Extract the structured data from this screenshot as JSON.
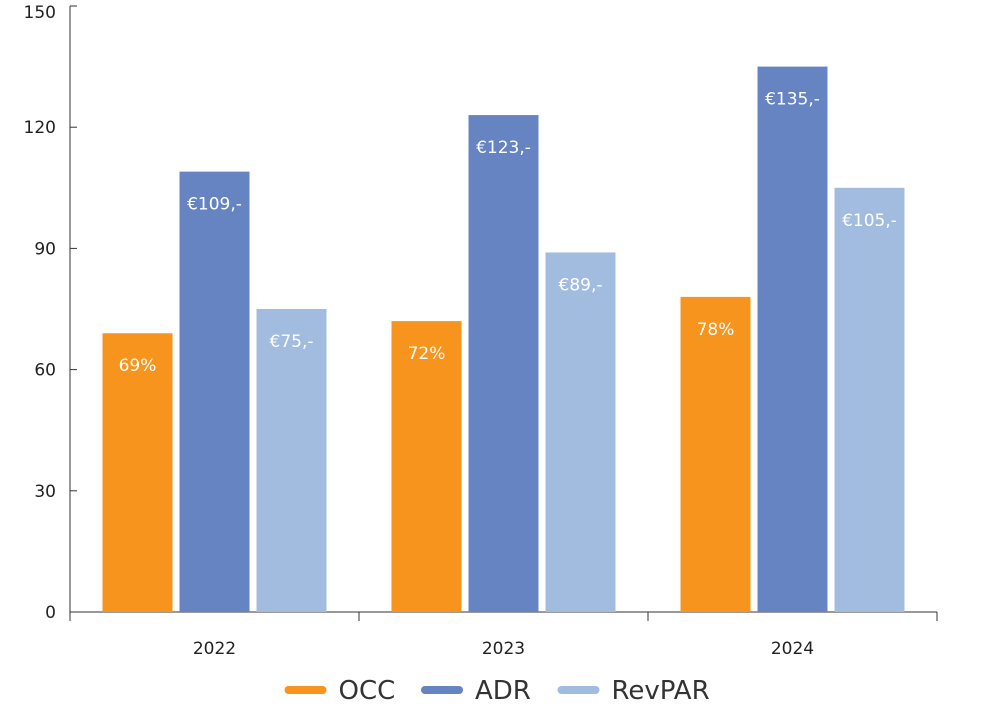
{
  "chart_data": {
    "type": "bar",
    "categories": [
      "2022",
      "2023",
      "2024"
    ],
    "series": [
      {
        "name": "OCC",
        "color": "#f7941d",
        "values": [
          69,
          72,
          78
        ],
        "labels": [
          "69%",
          "72%",
          "78%"
        ]
      },
      {
        "name": "ADR",
        "color": "#6584c1",
        "values": [
          109,
          123,
          135
        ],
        "labels": [
          "€109,-",
          "€123,-",
          "€135,-"
        ]
      },
      {
        "name": "RevPAR",
        "color": "#a2bce0",
        "values": [
          75,
          89,
          105
        ],
        "labels": [
          "€75,-",
          "€89,-",
          "€105,-"
        ]
      }
    ],
    "y_ticks": [
      "0",
      "30",
      "60",
      "90",
      "120",
      "150"
    ],
    "ylim": [
      0,
      150
    ],
    "title": "",
    "xlabel": "",
    "ylabel": "",
    "grid": false,
    "legend_position": "bottom-center"
  }
}
